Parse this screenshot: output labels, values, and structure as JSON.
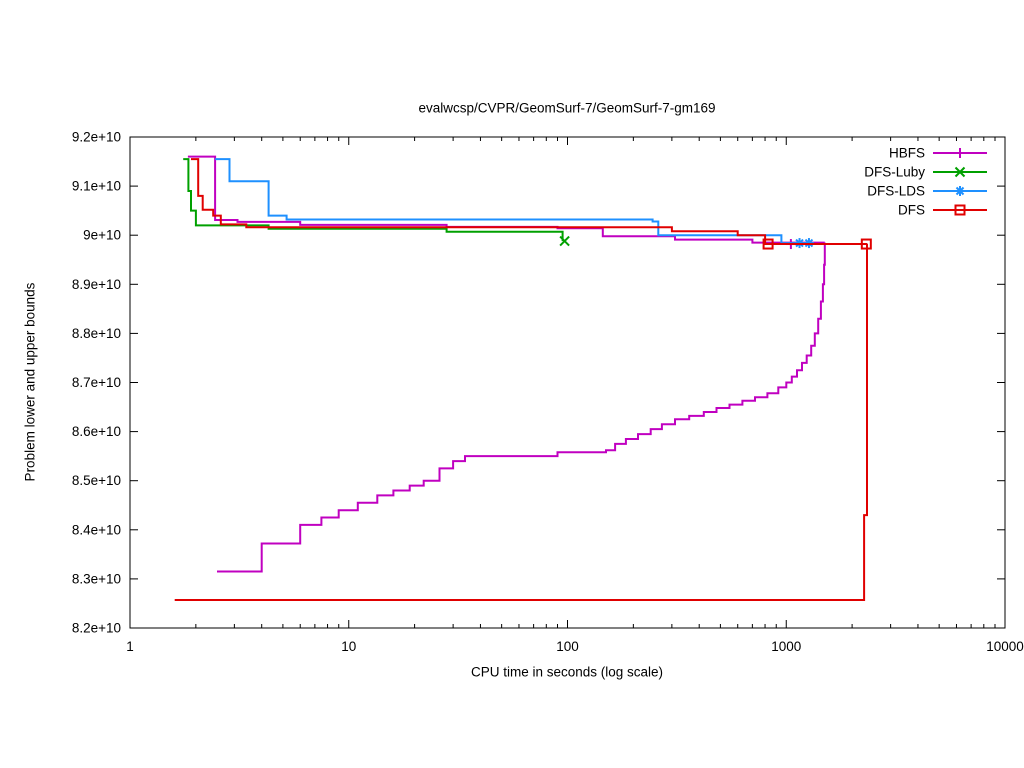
{
  "chart_data": {
    "type": "line",
    "title": "evalwcsp/CVPR/GeomSurf-7/GeomSurf-7-gm169",
    "xlabel": "CPU time in seconds (log scale)",
    "ylabel": "Problem lower and upper bounds",
    "x_scale": "log",
    "xlim": [
      1,
      10000
    ],
    "ylim": [
      8.2,
      9.2
    ],
    "y_value_multiplier": 10000000000.0,
    "grid": false,
    "legend_position": "top-right",
    "x_ticks": [
      {
        "value": 1,
        "label": "1"
      },
      {
        "value": 10,
        "label": "10"
      },
      {
        "value": 100,
        "label": "100"
      },
      {
        "value": 1000,
        "label": "1000"
      },
      {
        "value": 10000,
        "label": "10000"
      }
    ],
    "y_ticks": [
      {
        "value": 8.2,
        "label": "8.2e+10"
      },
      {
        "value": 8.3,
        "label": "8.3e+10"
      },
      {
        "value": 8.4,
        "label": "8.4e+10"
      },
      {
        "value": 8.5,
        "label": "8.5e+10"
      },
      {
        "value": 8.6,
        "label": "8.6e+10"
      },
      {
        "value": 8.7,
        "label": "8.7e+10"
      },
      {
        "value": 8.8,
        "label": "8.8e+10"
      },
      {
        "value": 8.9,
        "label": "8.9e+10"
      },
      {
        "value": 9.0,
        "label": "9e+10"
      },
      {
        "value": 9.1,
        "label": "9.1e+10"
      },
      {
        "value": 9.2,
        "label": "9.2e+10"
      }
    ],
    "series": [
      {
        "name": "HBFS",
        "color": "#c000c0",
        "marker": "plus",
        "lines": [
          [
            [
              1.84,
              9.16
            ],
            [
              2.45,
              9.16
            ],
            [
              2.45,
              9.031
            ],
            [
              3.1,
              9.031
            ],
            [
              3.1,
              9.027
            ],
            [
              6,
              9.027
            ],
            [
              6,
              9.021
            ],
            [
              28,
              9.021
            ],
            [
              28,
              9.017
            ],
            [
              90,
              9.017
            ],
            [
              90,
              9.014
            ],
            [
              145,
              9.014
            ],
            [
              145,
              8.998
            ],
            [
              310,
              8.998
            ],
            [
              310,
              8.991
            ],
            [
              700,
              8.991
            ],
            [
              700,
              8.985
            ],
            [
              1500,
              8.985
            ]
          ],
          [
            [
              2.5,
              8.315
            ],
            [
              4.0,
              8.315
            ],
            [
              4.0,
              8.372
            ],
            [
              6.0,
              8.372
            ],
            [
              6.0,
              8.41
            ],
            [
              7.5,
              8.41
            ],
            [
              7.5,
              8.425
            ],
            [
              9,
              8.425
            ],
            [
              9,
              8.44
            ],
            [
              11,
              8.44
            ],
            [
              11,
              8.455
            ],
            [
              13.5,
              8.455
            ],
            [
              13.5,
              8.47
            ],
            [
              16,
              8.47
            ],
            [
              16,
              8.48
            ],
            [
              19,
              8.48
            ],
            [
              19,
              8.49
            ],
            [
              22,
              8.49
            ],
            [
              22,
              8.5
            ],
            [
              26,
              8.5
            ],
            [
              26,
              8.525
            ],
            [
              30,
              8.525
            ],
            [
              30,
              8.54
            ],
            [
              34,
              8.54
            ],
            [
              34,
              8.55
            ],
            [
              90,
              8.55
            ],
            [
              90,
              8.558
            ],
            [
              150,
              8.558
            ],
            [
              150,
              8.562
            ],
            [
              165,
              8.562
            ],
            [
              165,
              8.575
            ],
            [
              185,
              8.575
            ],
            [
              185,
              8.585
            ],
            [
              210,
              8.585
            ],
            [
              210,
              8.595
            ],
            [
              240,
              8.595
            ],
            [
              240,
              8.605
            ],
            [
              270,
              8.605
            ],
            [
              270,
              8.615
            ],
            [
              310,
              8.615
            ],
            [
              310,
              8.625
            ],
            [
              360,
              8.625
            ],
            [
              360,
              8.632
            ],
            [
              420,
              8.632
            ],
            [
              420,
              8.64
            ],
            [
              480,
              8.64
            ],
            [
              480,
              8.648
            ],
            [
              550,
              8.648
            ],
            [
              550,
              8.655
            ],
            [
              630,
              8.655
            ],
            [
              630,
              8.663
            ],
            [
              720,
              8.663
            ],
            [
              720,
              8.67
            ],
            [
              820,
              8.67
            ],
            [
              820,
              8.678
            ],
            [
              920,
              8.678
            ],
            [
              920,
              8.69
            ],
            [
              1000,
              8.69
            ],
            [
              1000,
              8.7
            ],
            [
              1060,
              8.7
            ],
            [
              1060,
              8.712
            ],
            [
              1120,
              8.712
            ],
            [
              1120,
              8.725
            ],
            [
              1180,
              8.725
            ],
            [
              1180,
              8.74
            ],
            [
              1240,
              8.74
            ],
            [
              1240,
              8.755
            ],
            [
              1300,
              8.755
            ],
            [
              1300,
              8.775
            ],
            [
              1350,
              8.775
            ],
            [
              1350,
              8.8
            ],
            [
              1400,
              8.8
            ],
            [
              1400,
              8.83
            ],
            [
              1440,
              8.83
            ],
            [
              1440,
              8.865
            ],
            [
              1470,
              8.865
            ],
            [
              1470,
              8.9
            ],
            [
              1490,
              8.9
            ],
            [
              1490,
              8.94
            ],
            [
              1500,
              8.94
            ],
            [
              1500,
              8.985
            ]
          ]
        ],
        "marker_points": [
          [
            1050,
            8.982
          ]
        ]
      },
      {
        "name": "DFS-Luby",
        "color": "#00a000",
        "marker": "cross",
        "lines": [
          [
            [
              1.75,
              9.155
            ],
            [
              1.85,
              9.155
            ],
            [
              1.85,
              9.09
            ],
            [
              1.9,
              9.09
            ],
            [
              1.9,
              9.05
            ],
            [
              2.0,
              9.05
            ],
            [
              2.0,
              9.02
            ],
            [
              4.3,
              9.02
            ],
            [
              4.3,
              9.013
            ],
            [
              28,
              9.013
            ],
            [
              28,
              9.007
            ],
            [
              95,
              9.007
            ],
            [
              95,
              8.988
            ]
          ]
        ],
        "marker_points": [
          [
            97,
            8.988
          ]
        ]
      },
      {
        "name": "DFS-LDS",
        "color": "#1e90ff",
        "marker": "asterisk",
        "lines": [
          [
            [
              2.45,
              9.155
            ],
            [
              2.85,
              9.155
            ],
            [
              2.85,
              9.11
            ],
            [
              4.3,
              9.11
            ],
            [
              4.3,
              9.04
            ],
            [
              5.2,
              9.04
            ],
            [
              5.2,
              9.032
            ],
            [
              245,
              9.032
            ],
            [
              245,
              9.028
            ],
            [
              260,
              9.028
            ],
            [
              260,
              9.0
            ],
            [
              950,
              9.0
            ],
            [
              950,
              8.984
            ],
            [
              1280,
              8.984
            ]
          ]
        ],
        "marker_points": [
          [
            1150,
            8.984
          ],
          [
            1270,
            8.984
          ]
        ]
      },
      {
        "name": "DFS",
        "color": "#e00000",
        "marker": "square",
        "lines": [
          [
            [
              1.9,
              9.155
            ],
            [
              2.05,
              9.155
            ],
            [
              2.05,
              9.08
            ],
            [
              2.15,
              9.08
            ],
            [
              2.15,
              9.052
            ],
            [
              2.4,
              9.052
            ],
            [
              2.4,
              9.04
            ],
            [
              2.6,
              9.04
            ],
            [
              2.6,
              9.022
            ],
            [
              3.4,
              9.022
            ],
            [
              3.4,
              9.016
            ],
            [
              300,
              9.016
            ],
            [
              300,
              9.008
            ],
            [
              600,
              9.008
            ],
            [
              600,
              9.0
            ],
            [
              800,
              9.0
            ],
            [
              800,
              8.982
            ],
            [
              2350,
              8.982
            ]
          ],
          [
            [
              1.6,
              8.257
            ],
            [
              2270,
              8.257
            ],
            [
              2270,
              8.43
            ],
            [
              2340,
              8.43
            ],
            [
              2340,
              8.982
            ]
          ]
        ],
        "marker_points": [
          [
            826,
            8.982
          ],
          [
            2323,
            8.982
          ]
        ]
      }
    ]
  }
}
